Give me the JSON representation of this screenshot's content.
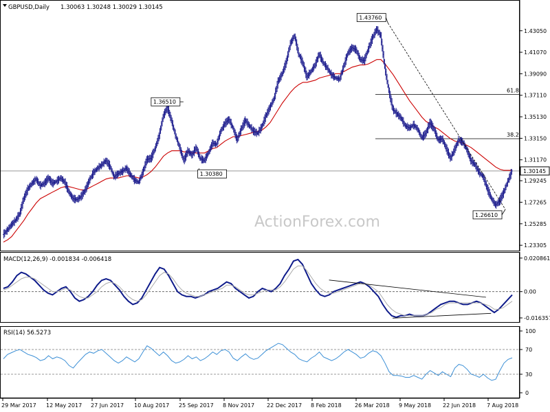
{
  "header": {
    "symbol": "GBPUSD,Daily",
    "ohlc": "1.30063 1.30248 1.30029 1.30145"
  },
  "watermark": "ActionForex.com",
  "colors": {
    "bars": "#1a1a8c",
    "ma": "#cc0000",
    "macd": "#0d1a8a",
    "signal": "#aaaaaa",
    "rsi": "#3b8fd6",
    "axis": "#000000",
    "ref_line": "#000000",
    "last_box_bg": "#ffffff"
  },
  "chart_data": [
    {
      "type": "ohlc",
      "title": "GBPUSD,Daily",
      "ylim": [
        1.23,
        1.455
      ],
      "y_ticks": [
        1.4305,
        1.4107,
        1.3909,
        1.3711,
        1.3513,
        1.3315,
        1.3117,
        1.29245,
        1.27265,
        1.25285,
        1.23305
      ],
      "y_tick_labels": [
        "1.43050",
        "1.41070",
        "1.39090",
        "1.37110",
        "1.35130",
        "1.33150",
        "1.31170",
        "1.29245",
        "1.27265",
        "1.25285",
        "1.23305"
      ],
      "x_tick_labels": [
        "29 Mar 2017",
        "12 May 2017",
        "27 Jun 2017",
        "10 Aug 2017",
        "25 Sep 2017",
        "8 Nov 2017",
        "22 Dec 2017",
        "8 Feb 2018",
        "26 Mar 2018",
        "9 May 2018",
        "22 Jun 2018",
        "7 Aug 2018"
      ],
      "last_price": "1.30145",
      "annotations": [
        {
          "label": "1.43760",
          "date": "2018-04-17",
          "price": 1.4376
        },
        {
          "label": "1.36510",
          "date": "2017-09-20",
          "price": 1.3651
        },
        {
          "label": "1.30380",
          "date": "2017-10-06",
          "price": 1.3038
        },
        {
          "label": "1.26610",
          "date": "2018-08-15",
          "price": 1.2661
        }
      ],
      "fib_levels": [
        {
          "label": "61.8",
          "price": 1.3719
        },
        {
          "label": "38.2",
          "price": 1.3311
        }
      ],
      "series": [
        {
          "name": "close",
          "values": [
            1.243,
            1.247,
            1.252,
            1.256,
            1.262,
            1.276,
            1.285,
            1.29,
            1.294,
            1.288,
            1.29,
            1.295,
            1.29,
            1.292,
            1.295,
            1.291,
            1.282,
            1.276,
            1.275,
            1.278,
            1.284,
            1.293,
            1.3,
            1.304,
            1.307,
            1.311,
            1.306,
            1.296,
            1.299,
            1.301,
            1.304,
            1.298,
            1.293,
            1.291,
            1.3,
            1.312,
            1.313,
            1.322,
            1.334,
            1.352,
            1.36,
            1.348,
            1.334,
            1.323,
            1.311,
            1.32,
            1.316,
            1.323,
            1.313,
            1.311,
            1.318,
            1.327,
            1.326,
            1.338,
            1.345,
            1.349,
            1.341,
            1.33,
            1.34,
            1.348,
            1.343,
            1.338,
            1.336,
            1.342,
            1.352,
            1.36,
            1.368,
            1.384,
            1.391,
            1.402,
            1.419,
            1.426,
            1.409,
            1.401,
            1.388,
            1.393,
            1.399,
            1.409,
            1.401,
            1.396,
            1.39,
            1.387,
            1.386,
            1.398,
            1.41,
            1.415,
            1.413,
            1.404,
            1.403,
            1.414,
            1.424,
            1.432,
            1.426,
            1.397,
            1.375,
            1.358,
            1.354,
            1.35,
            1.343,
            1.341,
            1.344,
            1.34,
            1.332,
            1.336,
            1.346,
            1.34,
            1.33,
            1.331,
            1.322,
            1.313,
            1.321,
            1.33,
            1.328,
            1.321,
            1.311,
            1.307,
            1.3,
            1.296,
            1.285,
            1.276,
            1.27,
            1.274,
            1.282,
            1.292,
            1.30145
          ]
        },
        {
          "name": "ma",
          "values": [
            1.236,
            1.238,
            1.241,
            1.246,
            1.251,
            1.256,
            1.262,
            1.267,
            1.272,
            1.276,
            1.278,
            1.28,
            1.282,
            1.284,
            1.286,
            1.287,
            1.287,
            1.286,
            1.285,
            1.284,
            1.284,
            1.286,
            1.288,
            1.29,
            1.292,
            1.294,
            1.295,
            1.295,
            1.295,
            1.296,
            1.297,
            1.297,
            1.296,
            1.295,
            1.296,
            1.298,
            1.301,
            1.305,
            1.31,
            1.315,
            1.318,
            1.32,
            1.32,
            1.32,
            1.319,
            1.319,
            1.318,
            1.318,
            1.318,
            1.318,
            1.32,
            1.322,
            1.323,
            1.326,
            1.329,
            1.331,
            1.333,
            1.333,
            1.334,
            1.335,
            1.336,
            1.337,
            1.338,
            1.339,
            1.342,
            1.346,
            1.352,
            1.358,
            1.364,
            1.369,
            1.374,
            1.378,
            1.381,
            1.383,
            1.383,
            1.384,
            1.385,
            1.387,
            1.388,
            1.389,
            1.39,
            1.391,
            1.391,
            1.393,
            1.395,
            1.397,
            1.398,
            1.399,
            1.399,
            1.4,
            1.402,
            1.404,
            1.404,
            1.4,
            1.395,
            1.39,
            1.384,
            1.378,
            1.372,
            1.366,
            1.361,
            1.356,
            1.351,
            1.347,
            1.345,
            1.342,
            1.34,
            1.337,
            1.334,
            1.331,
            1.329,
            1.328,
            1.327,
            1.325,
            1.323,
            1.32,
            1.317,
            1.314,
            1.311,
            1.308,
            1.305,
            1.303,
            1.302,
            1.302,
            1.302
          ]
        }
      ]
    },
    {
      "type": "line",
      "title": "MACD(12,26,9) -0.001834 -0.006418",
      "ylim": [
        -0.0185,
        0.0225
      ],
      "y_ticks": [
        0.020861,
        0.0,
        -0.016357
      ],
      "y_tick_labels": [
        "0.020861",
        "0.00",
        "-0.016357"
      ],
      "series": [
        {
          "name": "macd",
          "values": [
            0.002,
            0.003,
            0.006,
            0.01,
            0.012,
            0.011,
            0.009,
            0.007,
            0.004,
            0.001,
            -0.001,
            -0.002,
            0.0,
            0.002,
            0.003,
            0.0,
            -0.004,
            -0.006,
            -0.005,
            -0.003,
            0.0,
            0.004,
            0.007,
            0.008,
            0.007,
            0.004,
            0.001,
            -0.003,
            -0.006,
            -0.008,
            -0.007,
            -0.004,
            0.001,
            0.006,
            0.011,
            0.015,
            0.014,
            0.01,
            0.005,
            0.0,
            -0.002,
            -0.003,
            -0.003,
            -0.004,
            -0.003,
            -0.002,
            0.0,
            0.001,
            0.002,
            0.004,
            0.006,
            0.005,
            0.002,
            0.0,
            -0.002,
            -0.004,
            -0.003,
            0.0,
            0.002,
            0.001,
            0.0,
            0.002,
            0.005,
            0.01,
            0.014,
            0.019,
            0.02,
            0.017,
            0.011,
            0.005,
            0.001,
            -0.002,
            -0.003,
            -0.002,
            0.0,
            0.001,
            0.002,
            0.003,
            0.004,
            0.005,
            0.006,
            0.005,
            0.003,
            0.0,
            -0.003,
            -0.008,
            -0.012,
            -0.015,
            -0.016,
            -0.015,
            -0.015,
            -0.014,
            -0.015,
            -0.015,
            -0.015,
            -0.014,
            -0.012,
            -0.01,
            -0.008,
            -0.007,
            -0.006,
            -0.006,
            -0.007,
            -0.008,
            -0.008,
            -0.007,
            -0.006,
            -0.007,
            -0.009,
            -0.011,
            -0.013,
            -0.011,
            -0.008,
            -0.005,
            -0.002
          ]
        },
        {
          "name": "signal",
          "values": [
            0.001,
            0.002,
            0.004,
            0.006,
            0.008,
            0.009,
            0.009,
            0.008,
            0.006,
            0.004,
            0.002,
            0.0,
            0.0,
            0.001,
            0.002,
            0.001,
            -0.001,
            -0.003,
            -0.004,
            -0.004,
            -0.002,
            0.0,
            0.003,
            0.005,
            0.006,
            0.005,
            0.003,
            0.0,
            -0.003,
            -0.005,
            -0.006,
            -0.005,
            -0.002,
            0.002,
            0.006,
            0.01,
            0.012,
            0.011,
            0.008,
            0.004,
            0.001,
            -0.001,
            -0.002,
            -0.003,
            -0.003,
            -0.002,
            -0.001,
            0.0,
            0.001,
            0.002,
            0.004,
            0.004,
            0.003,
            0.001,
            -0.001,
            -0.002,
            -0.002,
            -0.001,
            0.0,
            0.001,
            0.001,
            0.001,
            0.003,
            0.006,
            0.01,
            0.014,
            0.016,
            0.016,
            0.013,
            0.009,
            0.005,
            0.002,
            0.0,
            -0.001,
            -0.001,
            0.0,
            0.001,
            0.002,
            0.003,
            0.004,
            0.005,
            0.005,
            0.004,
            0.002,
            0.0,
            -0.004,
            -0.008,
            -0.011,
            -0.013,
            -0.014,
            -0.015,
            -0.015,
            -0.015,
            -0.015,
            -0.015,
            -0.014,
            -0.013,
            -0.011,
            -0.01,
            -0.008,
            -0.007,
            -0.007,
            -0.007,
            -0.007,
            -0.007,
            -0.007,
            -0.007,
            -0.007,
            -0.008,
            -0.009,
            -0.011,
            -0.011,
            -0.01,
            -0.008,
            -0.006
          ]
        }
      ],
      "trendlines": [
        {
          "from": [
            0.64,
            0.0072
          ],
          "to": [
            0.935,
            -0.0035
          ]
        },
        {
          "from": [
            0.765,
            -0.0165
          ],
          "to": [
            0.945,
            -0.0135
          ]
        }
      ]
    },
    {
      "type": "line",
      "title": "RSI(14) 56.5273",
      "ylim": [
        0,
        100
      ],
      "y_ticks": [
        100,
        70,
        30,
        0
      ],
      "y_tick_labels": [
        "100",
        "70",
        "30",
        "0"
      ],
      "ref_lines": [
        70,
        30
      ],
      "series": [
        {
          "name": "rsi",
          "values": [
            55,
            62,
            65,
            68,
            70,
            66,
            62,
            60,
            57,
            52,
            54,
            60,
            55,
            58,
            56,
            52,
            44,
            40,
            48,
            55,
            62,
            66,
            64,
            68,
            70,
            64,
            58,
            52,
            48,
            52,
            58,
            54,
            50,
            55,
            66,
            76,
            72,
            66,
            60,
            66,
            60,
            52,
            48,
            50,
            54,
            60,
            55,
            58,
            52,
            55,
            60,
            66,
            62,
            68,
            70,
            66,
            56,
            52,
            58,
            63,
            57,
            54,
            56,
            62,
            68,
            72,
            76,
            80,
            78,
            72,
            66,
            62,
            55,
            52,
            50,
            56,
            60,
            66,
            58,
            55,
            52,
            55,
            60,
            66,
            70,
            66,
            62,
            56,
            58,
            64,
            68,
            66,
            60,
            48,
            34,
            28,
            28,
            27,
            25,
            25,
            28,
            25,
            22,
            30,
            36,
            32,
            28,
            34,
            30,
            26,
            40,
            46,
            44,
            38,
            30,
            28,
            25,
            30,
            24,
            20,
            22,
            36,
            48,
            54,
            56.5
          ]
        }
      ]
    }
  ]
}
